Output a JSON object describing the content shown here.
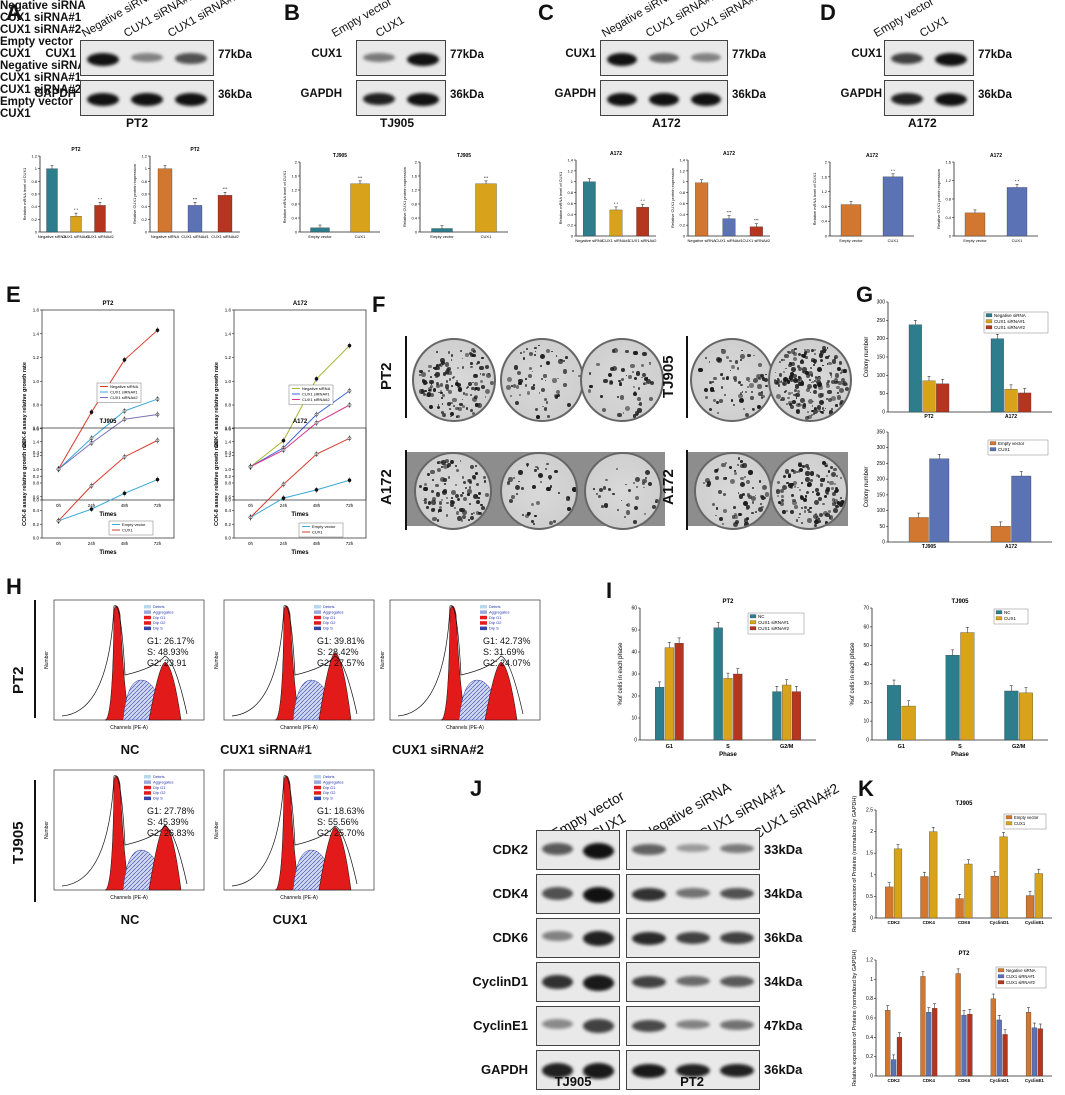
{
  "panels": {
    "A": {
      "letter": "A",
      "lanes": [
        "Negative siRNA",
        "CUX1 siRNA#1",
        "CUX1 siRNA#2"
      ],
      "rows": [
        "CUX1",
        "GAPDH"
      ],
      "kda": [
        "77kDa",
        "36kDa"
      ],
      "caption": "PT2"
    },
    "B": {
      "letter": "B",
      "lanes": [
        "Empty vector",
        "CUX1"
      ],
      "rows": [
        "CUX1",
        "GAPDH"
      ],
      "kda": [
        "77kDa",
        "36kDa"
      ],
      "caption": "TJ905"
    },
    "C": {
      "letter": "C",
      "lanes": [
        "Negative siRNA",
        "CUX1 siRNA#1",
        "CUX1 siRNA#2"
      ],
      "rows": [
        "CUX1",
        "GAPDH"
      ],
      "kda": [
        "77kDa",
        "36kDa"
      ],
      "caption": "A172"
    },
    "D": {
      "letter": "D",
      "lanes": [
        "Empty vector",
        "CUX1"
      ],
      "rows": [
        "CUX1",
        "GAPDH"
      ],
      "kda": [
        "77kDa",
        "36kDa"
      ],
      "caption": "A172"
    },
    "E": {
      "letter": "E"
    },
    "F": {
      "letter": "F",
      "top_headers": [
        "Negative siRNA",
        "CUX1 siRNA#1",
        "CUX1 siRNA#2",
        "Empty vector",
        "CUX1"
      ],
      "bottom_headers": [
        "Negative siRNA",
        "CUX1 siRNA#1",
        "CUX1 siRNA#2",
        "Empty vector",
        "CUX1"
      ],
      "row_labels": [
        "PT2",
        "A172",
        "TJ905",
        "A172"
      ]
    },
    "G": {
      "letter": "G"
    },
    "H": {
      "letter": "H",
      "row_labels": [
        "PT2",
        "TJ905"
      ],
      "captions": [
        "NC",
        "CUX1 siRNA#1",
        "CUX1 siRNA#2",
        "NC",
        "CUX1"
      ],
      "stats": [
        "G1: 26.17%\nS: 48.93%\nG2: 23.91",
        "G1: 39.81%\nS: 28.42%\nG2: 27.57%",
        "G1: 42.73%\nS: 31.69%\nG2: 24.07%",
        "G1: 27.78%\nS: 45.39%\nG2: 26.83%",
        "G1: 18.63%\nS: 55.56%\nG2: 25.70%"
      ],
      "legend": [
        "Debris",
        "Aggregates",
        "Dip G1",
        "Dip G2",
        "Dip S"
      ],
      "xlabel": "Channels (PE-A)",
      "ylabel": "Number"
    },
    "I": {
      "letter": "I"
    },
    "J": {
      "letter": "J",
      "lanes": [
        "Empty vector",
        "CUX1",
        "Negative siRNA",
        "CUX1 siRNA#1",
        "CUX1 siRNA#2"
      ],
      "rows": [
        "CDK2",
        "CDK4",
        "CDK6",
        "CyclinD1",
        "CyclinE1",
        "GAPDH"
      ],
      "kda": [
        "33kDa",
        "34kDa",
        "36kDa",
        "34kDa",
        "47kDa",
        "36kDa"
      ],
      "captions": [
        "TJ905",
        "PT2"
      ]
    },
    "K": {
      "letter": "K"
    }
  },
  "chart_data": [
    {
      "id": "A-mrna",
      "type": "bar",
      "title": "PT2",
      "ylabel": "Relative mRNA level of CUX1",
      "categories": [
        "Negative siRNA",
        "CUX1 siRNA#1",
        "CUX1 siRNA#2"
      ],
      "values": [
        1.0,
        0.25,
        0.42
      ],
      "colors": [
        "#2e7d8c",
        "#d8a21b",
        "#b5351e"
      ],
      "ylim": [
        0,
        1.2
      ],
      "sig": [
        "",
        "* *",
        "* *"
      ]
    },
    {
      "id": "A-prot",
      "type": "bar",
      "title": "PT2",
      "ylabel": "Relative CUX1 protein expression",
      "categories": [
        "Negative siRNA",
        "CUX1 siRNA#1",
        "CUX1 siRNA#2"
      ],
      "values": [
        1.0,
        0.42,
        0.58
      ],
      "colors": [
        "#d2772f",
        "#5b73b5",
        "#b5351e"
      ],
      "ylim": [
        0,
        1.2
      ],
      "sig": [
        "",
        "***",
        "***"
      ]
    },
    {
      "id": "B-mrna",
      "type": "bar",
      "title": "TJ905",
      "ylabel": "Relative mRNA level of CUX1",
      "categories": [
        "Empty vector",
        "CUX1"
      ],
      "values": [
        0.12,
        1.38
      ],
      "colors": [
        "#2e7d8c",
        "#d8a21b"
      ],
      "ylim": [
        0,
        2
      ],
      "sig": [
        "",
        "***"
      ]
    },
    {
      "id": "B-prot",
      "type": "bar",
      "title": "TJ905",
      "ylabel": "Relative CUX1 protein expression",
      "categories": [
        "Empty vector",
        "CUX1"
      ],
      "values": [
        0.1,
        1.38
      ],
      "colors": [
        "#2e7d8c",
        "#d8a21b"
      ],
      "ylim": [
        0,
        2
      ],
      "sig": [
        "",
        "***"
      ]
    },
    {
      "id": "C-mrna",
      "type": "bar",
      "title": "A172",
      "ylabel": "Relative mRNA level of CUX1",
      "categories": [
        "Negative siRNA",
        "CUX1 siRNA#1",
        "CUX1 siRNA#2"
      ],
      "values": [
        1.0,
        0.48,
        0.53
      ],
      "colors": [
        "#2e7d8c",
        "#d8a21b",
        "#b5351e"
      ],
      "ylim": [
        0,
        1.4
      ],
      "sig": [
        "",
        "* *",
        "* *"
      ]
    },
    {
      "id": "C-prot",
      "type": "bar",
      "title": "A172",
      "ylabel": "Relative CUX1 protein expression",
      "categories": [
        "Negative siRNA",
        "CUX1 siRNA#1",
        "CUX1 siRNA#2"
      ],
      "values": [
        0.98,
        0.32,
        0.17
      ],
      "colors": [
        "#d2772f",
        "#5b73b5",
        "#b5351e"
      ],
      "ylim": [
        0,
        1.4
      ],
      "sig": [
        "",
        "***",
        "***"
      ]
    },
    {
      "id": "D-mrna",
      "type": "bar",
      "title": "A172",
      "ylabel": "Relative mRNA level of CUX1",
      "categories": [
        "Empty vector",
        "CUX1"
      ],
      "values": [
        0.85,
        1.6
      ],
      "colors": [
        "#d2772f",
        "#5b73b5"
      ],
      "ylim": [
        0,
        2
      ],
      "sig": [
        "",
        "* *"
      ]
    },
    {
      "id": "D-prot",
      "type": "bar",
      "title": "A172",
      "ylabel": "Relative CUX1 protein expression",
      "categories": [
        "Empty vector",
        "CUX1"
      ],
      "values": [
        0.5,
        1.05
      ],
      "colors": [
        "#d2772f",
        "#5b73b5"
      ],
      "ylim": [
        0,
        1.6
      ],
      "sig": [
        "",
        "* *"
      ]
    },
    {
      "id": "E1",
      "type": "line",
      "title": "PT2",
      "xlabel": "Times",
      "ylabel": "CCK-8 assay relative growth rate",
      "categories": [
        "0h",
        "24h",
        "48h",
        "72h"
      ],
      "ylim": [
        0,
        1.6
      ],
      "series": [
        {
          "name": "Negative siRNA",
          "values": [
            0.26,
            0.74,
            1.18,
            1.43
          ],
          "color": "#d93a2b"
        },
        {
          "name": "CUX1 siRNA#1",
          "values": [
            0.26,
            0.52,
            0.75,
            0.85
          ],
          "color": "#3aa9d9"
        },
        {
          "name": "CUX1 siRNA#2",
          "values": [
            0.26,
            0.48,
            0.68,
            0.72
          ],
          "color": "#7b6fb7"
        }
      ]
    },
    {
      "id": "E2",
      "type": "line",
      "title": "A172",
      "xlabel": "Times",
      "ylabel": "CCK-8 assay relative growth rate",
      "categories": [
        "0h",
        "24h",
        "48h",
        "72h"
      ],
      "ylim": [
        0,
        1.6
      ],
      "series": [
        {
          "name": "Negative siRNA",
          "values": [
            0.28,
            0.5,
            1.02,
            1.3
          ],
          "color": "#a8b733"
        },
        {
          "name": "CUX1 siRNA#1",
          "values": [
            0.28,
            0.44,
            0.72,
            0.92
          ],
          "color": "#3a64d9"
        },
        {
          "name": "CUX1 siRNA#2",
          "values": [
            0.28,
            0.42,
            0.65,
            0.8
          ],
          "color": "#d93a8b"
        }
      ]
    },
    {
      "id": "E3",
      "type": "line",
      "title": "TJ905",
      "xlabel": "Times",
      "ylabel": "CCK-8 assay relative growth rate",
      "categories": [
        "0h",
        "24h",
        "48h",
        "72h"
      ],
      "ylim": [
        0,
        1.6
      ],
      "series": [
        {
          "name": "Empty vector",
          "values": [
            0.25,
            0.42,
            0.65,
            0.85
          ],
          "color": "#3aa9d9"
        },
        {
          "name": "CUX1",
          "values": [
            0.25,
            0.76,
            1.18,
            1.42
          ],
          "color": "#d93a2b"
        }
      ]
    },
    {
      "id": "E4",
      "type": "line",
      "title": "A172",
      "xlabel": "Times",
      "ylabel": "CCK-8 assay relative growth rate",
      "categories": [
        "0h",
        "24h",
        "48h",
        "72h"
      ],
      "ylim": [
        0,
        1.6
      ],
      "series": [
        {
          "name": "Empty vector",
          "values": [
            0.3,
            0.58,
            0.7,
            0.84
          ],
          "color": "#3aa9d9"
        },
        {
          "name": "CUX1",
          "values": [
            0.3,
            0.78,
            1.22,
            1.45
          ],
          "color": "#d93a2b"
        }
      ]
    },
    {
      "id": "G1",
      "type": "bar",
      "ylabel": "Colony number",
      "categories": [
        "PT2",
        "A172"
      ],
      "ylim": [
        0,
        300
      ],
      "series": [
        {
          "name": "Negative siRNA",
          "values": [
            238,
            200
          ],
          "color": "#2e7d8c"
        },
        {
          "name": "CUX1 siRNA#1",
          "values": [
            85,
            62
          ],
          "color": "#d8a21b"
        },
        {
          "name": "CUX1 siRNA#2",
          "values": [
            77,
            52
          ],
          "color": "#b5351e"
        }
      ]
    },
    {
      "id": "G2",
      "type": "bar",
      "ylabel": "Colony number",
      "categories": [
        "TJ905",
        "A172"
      ],
      "ylim": [
        0,
        350
      ],
      "series": [
        {
          "name": "Empty vector",
          "values": [
            78,
            50
          ],
          "color": "#d2772f"
        },
        {
          "name": "CUX1",
          "values": [
            265,
            210
          ],
          "color": "#5b73b5"
        }
      ]
    },
    {
      "id": "I1",
      "type": "bar",
      "title": "PT2",
      "xlabel": "Phase",
      "ylabel": "%of cells in each phase",
      "categories": [
        "G1",
        "S",
        "G2/M"
      ],
      "ylim": [
        0,
        60
      ],
      "series": [
        {
          "name": "NC",
          "values": [
            24,
            51,
            22
          ],
          "color": "#2e7d8c"
        },
        {
          "name": "CUX1 siRNA#1",
          "values": [
            42,
            28,
            25
          ],
          "color": "#d8a21b"
        },
        {
          "name": "CUX1 siRNA#2",
          "values": [
            44,
            30,
            22
          ],
          "color": "#b5351e"
        }
      ]
    },
    {
      "id": "I2",
      "type": "bar",
      "title": "TJ905",
      "xlabel": "Phase",
      "ylabel": "%of cells in each phase",
      "categories": [
        "G1",
        "S",
        "G2/M"
      ],
      "ylim": [
        0,
        70
      ],
      "series": [
        {
          "name": "NC",
          "values": [
            29,
            45,
            26
          ],
          "color": "#2e7d8c"
        },
        {
          "name": "CUX1",
          "values": [
            18,
            57,
            25
          ],
          "color": "#d8a21b"
        }
      ]
    },
    {
      "id": "K1",
      "type": "bar",
      "title": "TJ905",
      "ylabel": "Relative expression of Proteins (normalized by GAPDH)",
      "categories": [
        "CDK2",
        "CDK4",
        "CDK6",
        "CyclinD1",
        "CyclinE1"
      ],
      "ylim": [
        0,
        2.5
      ],
      "series": [
        {
          "name": "Empty vector",
          "values": [
            0.72,
            0.96,
            0.45,
            0.97,
            0.52
          ],
          "color": "#d2772f"
        },
        {
          "name": "CUX1",
          "values": [
            1.6,
            2.0,
            1.25,
            1.88,
            1.03
          ],
          "color": "#d8a21b"
        }
      ]
    },
    {
      "id": "K2",
      "type": "bar",
      "title": "PT2",
      "ylabel": "Relative expression of Proteins (normalized by GAPDH)",
      "categories": [
        "CDK2",
        "CDK4",
        "CDK6",
        "CyclinD1",
        "CyclinE1"
      ],
      "ylim": [
        0,
        1.2
      ],
      "series": [
        {
          "name": "Negative siRNA",
          "values": [
            0.68,
            1.03,
            1.06,
            0.8,
            0.66
          ],
          "color": "#d2772f"
        },
        {
          "name": "CUX1 siRNA#1",
          "values": [
            0.17,
            0.66,
            0.63,
            0.58,
            0.5
          ],
          "color": "#5b73b5"
        },
        {
          "name": "CUX1 siRNA#2",
          "values": [
            0.4,
            0.7,
            0.64,
            0.43,
            0.49
          ],
          "color": "#b5351e"
        }
      ]
    }
  ]
}
